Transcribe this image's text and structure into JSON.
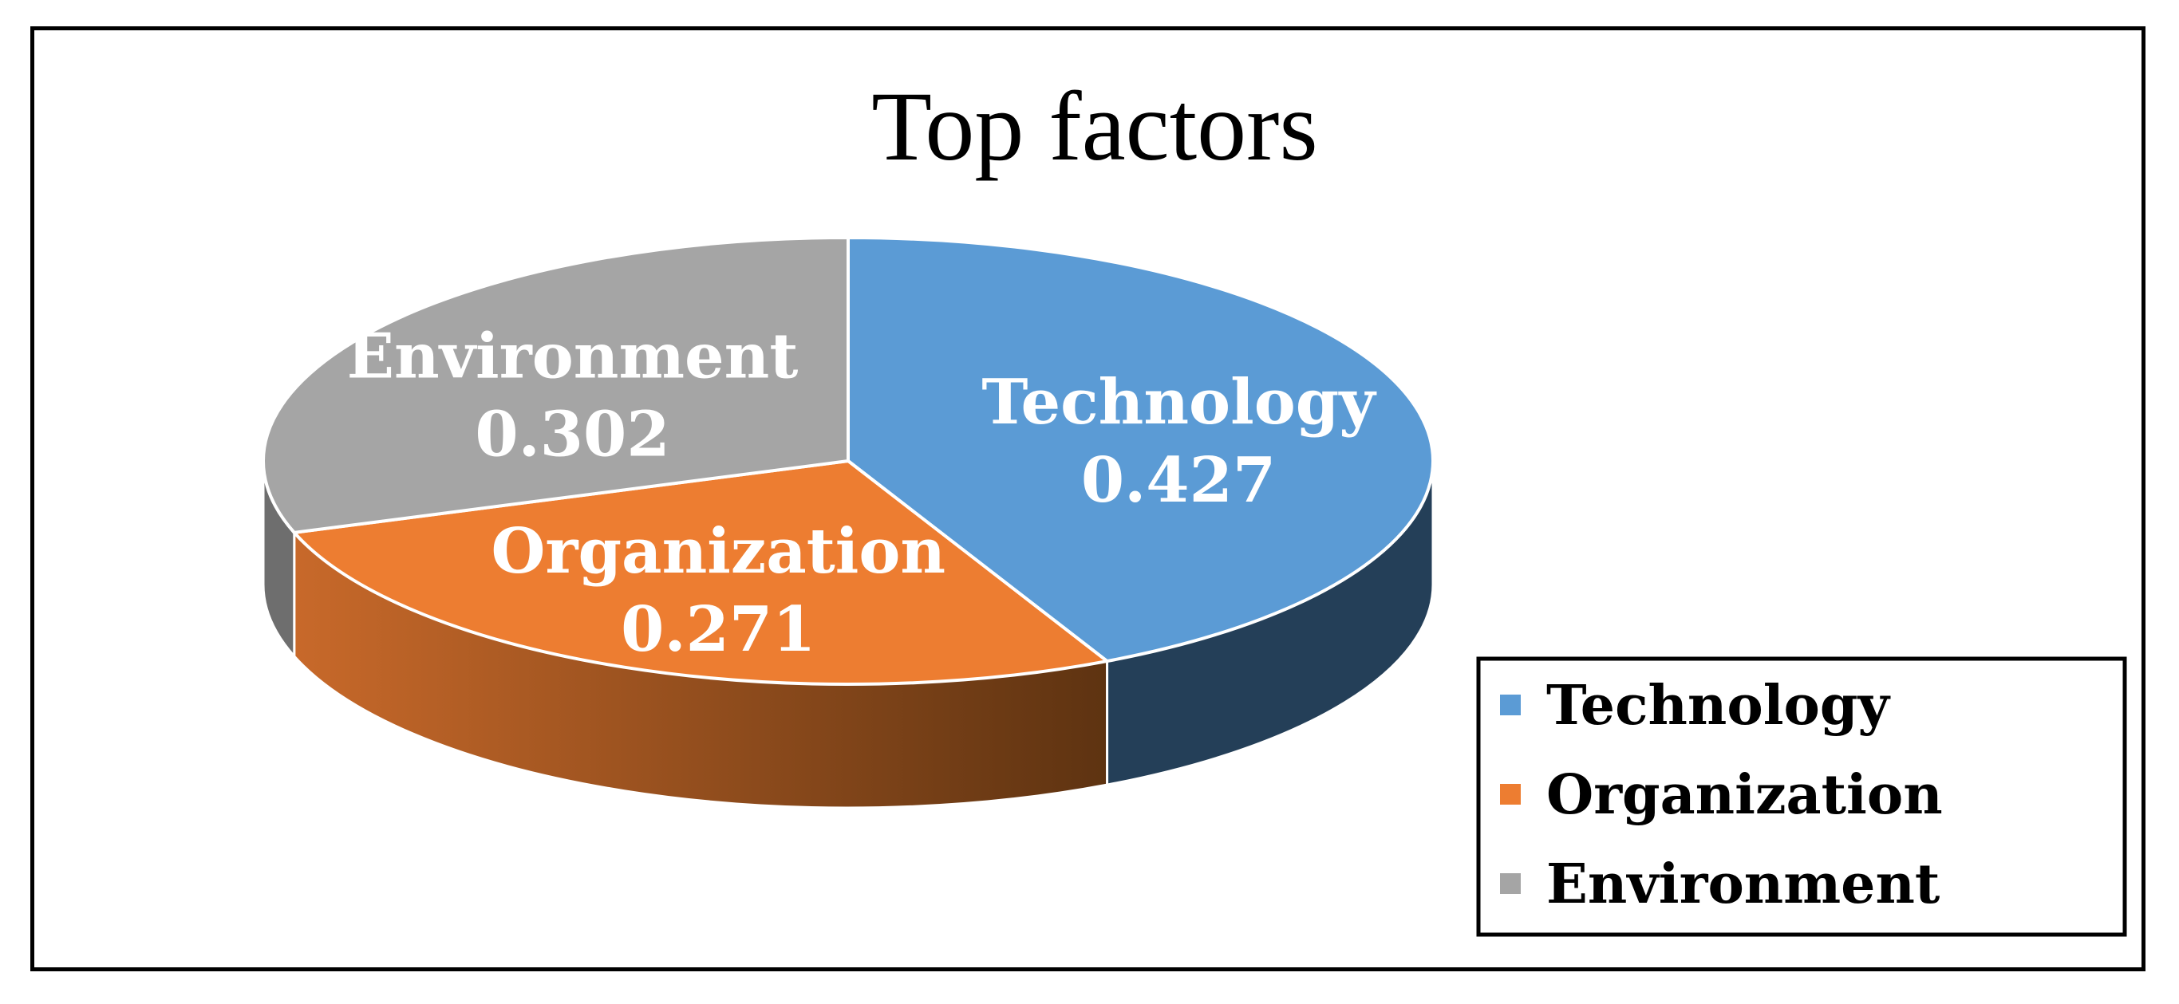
{
  "chart_data": {
    "type": "pie",
    "title": "Top factors",
    "slices": [
      {
        "label": "Technology",
        "value": 0.427,
        "color": "#5B9BD5",
        "side_color": "#243F58"
      },
      {
        "label": "Organization",
        "value": 0.271,
        "color": "#ED7D31",
        "side_color": "#A85A24"
      },
      {
        "label": "Environment",
        "value": 0.302,
        "color": "#A5A5A5",
        "side_color": "#6E6E6E"
      }
    ],
    "data_labels": [
      {
        "name": "Technology",
        "value": "0.427"
      },
      {
        "name": "Organization",
        "value": "0.271"
      },
      {
        "name": "Environment",
        "value": "0.302"
      }
    ],
    "legend": {
      "placement": "bottom-right",
      "entries": [
        "Technology",
        "Organization",
        "Environment"
      ]
    },
    "style": "3d"
  }
}
